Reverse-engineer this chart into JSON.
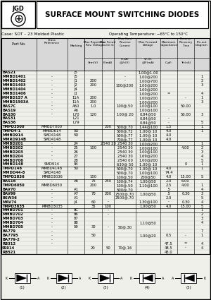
{
  "title": "SURFACE MOUNT SWITCHING DIODES",
  "case_info": "Case: SOT – 23 Molded Plastic",
  "temp_info": "Operating Temperature: −65°C to 150°C",
  "col_headers_line1": [
    "",
    "Cross",
    "",
    "Max Repetitive",
    "Max Forwd",
    "Max Cont",
    "Max Forward",
    "Maximum",
    "Reverse",
    "Pin-out"
  ],
  "col_headers_line2": [
    "Part No.",
    "Reference",
    "Marking",
    "Rev. Voltage",
    "Current",
    "Reverse",
    "Voltage",
    "Capacitance",
    "Recovery",
    "Diagram"
  ],
  "col_headers_line3": [
    "",
    "",
    "",
    "",
    "",
    "Current",
    "",
    "",
    "Time",
    ""
  ],
  "col_headers_line4": [
    "",
    "",
    "",
    "Vrm(V)",
    "If(mA)",
    "Ir(nA)",
    "VF,V1",
    "C,pF:",
    "Trr(nS)",
    ""
  ],
  "col_headers_line5": [
    "",
    "",
    "",
    "",
    "",
    "@Vr(V)",
    "@IF(mA)",
    "",
    "",
    ""
  ],
  "rows": [
    [
      "BAS21",
      "",
      "J5",
      "",
      "",
      "",
      "1.00@1.00",
      "",
      "",
      ""
    ],
    [
      "MMBD1401",
      "-",
      "J5",
      "",
      "",
      "-",
      "1.00@200",
      "",
      "",
      "1"
    ],
    [
      "MMBD1402",
      "-",
      "J1",
      "200",
      "",
      "-",
      "1.00@700",
      "",
      "",
      "2"
    ],
    [
      "MMBD1403",
      "-",
      "J2",
      "200",
      "",
      "100@200",
      "1.00@200",
      "",
      "",
      "3"
    ],
    [
      "MMBD1404",
      "-",
      "J4",
      "",
      "",
      "",
      "1.00@200",
      "",
      "",
      ""
    ],
    [
      "MMBD1406",
      "-",
      "J1",
      "",
      "",
      "",
      "1.00@200",
      "=",
      "",
      "4"
    ],
    [
      "MMBD157 A",
      "-",
      "11A",
      "200",
      "",
      "",
      "1.00@200",
      "",
      "-",
      "1"
    ],
    [
      "MMBD1503A",
      "-",
      "11A",
      "200",
      "",
      "",
      "1.00@200",
      "",
      "",
      "3"
    ],
    [
      "BAS7C",
      "-",
      "A60",
      "1.0",
      "",
      "100@.50",
      "1.00@100",
      "",
      "50.00",
      ""
    ],
    [
      "BAS19",
      "-",
      "A6",
      "",
      "",
      "",
      "1.00@100",
      "-",
      "",
      ""
    ],
    [
      "BAS30",
      "-",
      "L70",
      "120",
      "",
      "100@ 20",
      "0.84@50",
      "",
      "50.00",
      "3"
    ],
    [
      "BAS31",
      "",
      "L21",
      "",
      "",
      "",
      "0.84@50",
      "-",
      "",
      ""
    ],
    [
      "BAS36",
      "",
      "L79",
      "",
      "",
      "",
      "0.84@50",
      "-",
      "",
      "5"
    ],
    [
      "TMPD3500",
      "MMBD7000",
      "",
      "",
      "200",
      "500@.70",
      "1.44@100",
      "1.5",
      "",
      "1"
    ],
    [
      "TMPD4-1",
      "MMBD614",
      "5D",
      "",
      "",
      "500@.72",
      "1.00@ 10",
      "4.0",
      "",
      "1"
    ],
    [
      "MMBD914",
      "SMD4148",
      "5D",
      "",
      "",
      "500@.77",
      "1.00@ 10",
      "4.0",
      "",
      ""
    ],
    [
      "MMRD914B",
      "SMD4148",
      "",
      "",
      "",
      "700@.77",
      "1.00@ 10",
      "4.0",
      "",
      ""
    ],
    [
      "MMBD201",
      "-",
      "24",
      "",
      "2540 20",
      "2540 30",
      "1.00@200",
      "",
      "",
      "1"
    ],
    [
      "MMBD202",
      "-",
      "25",
      "100",
      "",
      "2540 30",
      "1.00@100",
      "",
      "4.00",
      "2"
    ],
    [
      "MMBD203",
      "-",
      "26",
      "",
      "",
      "2540 30",
      "1.00@100",
      "",
      "",
      "3"
    ],
    [
      "MMBD204",
      "-",
      "27",
      "",
      "",
      "2540 30",
      "1.69@200",
      "",
      "",
      "4"
    ],
    [
      "MMBD706",
      "-",
      "28",
      "",
      "",
      "2540 00",
      "1.00@200",
      "",
      "",
      "5"
    ],
    [
      "MMBD148",
      "SMD914",
      "94",
      "",
      "",
      "630@ 50",
      "1.00@ 10",
      "",
      "0",
      "1"
    ],
    [
      "TMPD148",
      "MMBD4148",
      "5D",
      "",
      "",
      "500@.70",
      "1.00@ 10",
      "4.0",
      "",
      "1"
    ],
    [
      "MMDD44-8",
      "SMD4148",
      "",
      "",
      "",
      "500@.70",
      "1.00@100",
      "74.4",
      "",
      ""
    ],
    [
      "TMPD2836",
      "MMBD3036",
      "",
      "100",
      "",
      "100@.50",
      "200@50",
      "4.0",
      "15.00",
      "5"
    ],
    [
      "BAS16",
      "-",
      "A6",
      "75",
      "250",
      "100@.74",
      "1.00@50",
      "2.0",
      "6.00",
      ""
    ],
    [
      "TMPD6050",
      "MMBD6050",
      "",
      "200",
      "",
      "100@.50",
      "1.10@100",
      "2.5",
      "4.00",
      "1"
    ],
    [
      "BAV70",
      "-",
      "A1",
      "",
      "",
      "500@.70",
      "",
      ".5",
      "",
      "4"
    ],
    [
      "BAV99",
      "-",
      "A7",
      "70",
      "200",
      "2500@.70",
      "1.00@50",
      ".5",
      "0.30",
      "3"
    ],
    [
      "BSW36",
      "-",
      "A1",
      "",
      "",
      "2500@.70",
      "",
      "2.0",
      "",
      "5"
    ],
    [
      "MAV74",
      "-",
      "J4",
      "60",
      "-",
      "",
      "1.30@100",
      "-",
      "0.30",
      "4"
    ],
    [
      "TMPD3635",
      "MMBD3035",
      "",
      "35",
      "100",
      "",
      "1.00@50",
      "4.0",
      "15.00",
      "5"
    ],
    [
      "MMBD701",
      "-",
      "8C",
      "",
      "-",
      "",
      "",
      "",
      "",
      "1"
    ],
    [
      "MMBD702",
      "-",
      "86",
      "",
      "-",
      "",
      "",
      "",
      "",
      "2"
    ],
    [
      "MMBD703",
      "-",
      "87",
      "",
      "",
      "",
      "",
      "",
      "",
      "3"
    ],
    [
      "MMBD704",
      "-",
      "88",
      "",
      "",
      "",
      "1.10@50",
      "",
      "",
      "4"
    ],
    [
      "MMBD705",
      "-",
      "59",
      "30",
      "-",
      "50@.30",
      "",
      "",
      "",
      ""
    ],
    [
      "BA779",
      "-",
      "",
      "",
      "",
      "",
      "",
      "",
      "",
      "7"
    ],
    [
      "BA7795",
      "-",
      "",
      "50",
      "",
      "",
      "1.00@20",
      "0.5",
      "-",
      "1"
    ],
    [
      "BA779-2",
      "-",
      "",
      "",
      "",
      "",
      "",
      "",
      "",
      ""
    ],
    [
      "RB312",
      "-",
      "",
      "",
      "",
      "",
      "",
      "47.5",
      "=",
      "4"
    ],
    [
      "SS914",
      "",
      "",
      "20",
      "50",
      "70@.16",
      "",
      "48.5",
      "-",
      "4"
    ],
    [
      "RB521",
      "",
      "",
      "",
      "",
      "",
      "",
      "45.0",
      "",
      ""
    ]
  ],
  "bg_color": "#f5f5f0",
  "header_bg": "#cccccc",
  "line_color": "#000000",
  "text_color": "#000000"
}
